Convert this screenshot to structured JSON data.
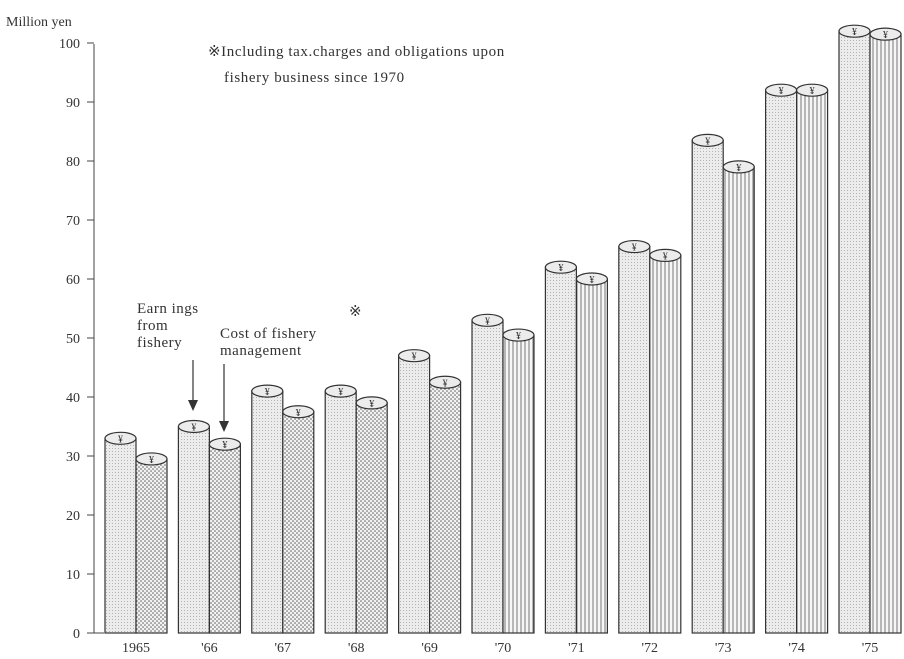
{
  "chart_data": {
    "type": "bar",
    "ylabel": "Million yen",
    "ylim": [
      0,
      100
    ],
    "yticks": [
      0,
      10,
      20,
      30,
      40,
      50,
      60,
      70,
      80,
      90,
      100
    ],
    "categories": [
      "1965",
      "'66",
      "'67",
      "'68",
      "'69",
      "'70",
      "'71",
      "'72",
      "'73",
      "'74",
      "'75"
    ],
    "series": [
      {
        "name": "Earnings from fishery",
        "values": [
          33,
          35,
          41,
          41,
          47,
          53,
          62,
          65.5,
          83.5,
          92,
          102
        ]
      },
      {
        "name": "Cost of fishery management",
        "values": [
          29.5,
          32,
          37.5,
          39,
          42.5,
          50.5,
          60,
          64,
          79,
          92,
          101.5
        ]
      }
    ],
    "note_line1": "※Including tax.charges and obligations upon",
    "note_line2": "fishery business since 1970",
    "label_earnings_1": "Earn ings",
    "label_earnings_2": "from",
    "label_earnings_3": "fishery",
    "label_cost_1": "Cost of fishery",
    "label_cost_2": "management",
    "asterisk": "※",
    "yen_symbol": "¥",
    "colors": {
      "ink": "#333333",
      "fill": "#e8e8e8"
    }
  }
}
